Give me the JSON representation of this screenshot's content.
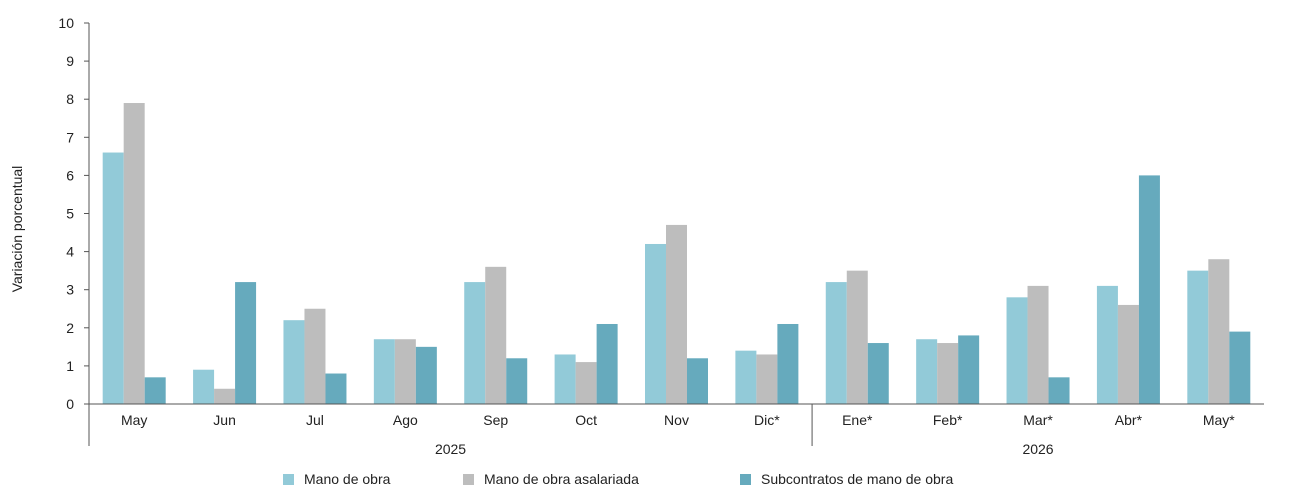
{
  "chart_data": {
    "type": "bar",
    "categories": [
      "May",
      "Jun",
      "Jul",
      "Ago",
      "Sep",
      "Oct",
      "Nov",
      "Dic*",
      "Ene*",
      "Feb*",
      "Mar*",
      "Abr*",
      "May*"
    ],
    "year_groups": [
      {
        "label": "2025",
        "start": 0,
        "end": 7
      },
      {
        "label": "2026",
        "start": 8,
        "end": 12
      }
    ],
    "series": [
      {
        "name": "Mano de obra",
        "color": "#92CAD8",
        "values": [
          6.6,
          0.9,
          2.2,
          1.7,
          3.2,
          1.3,
          4.2,
          1.4,
          3.2,
          1.7,
          2.8,
          3.1,
          3.5
        ]
      },
      {
        "name": "Mano de obra asalariada",
        "color": "#BDBDBD",
        "values": [
          7.9,
          0.4,
          2.5,
          1.7,
          3.6,
          1.1,
          4.7,
          1.3,
          3.5,
          1.6,
          3.1,
          2.6,
          3.8
        ]
      },
      {
        "name": "Subcontratos de mano de obra",
        "color": "#66AABD",
        "values": [
          0.7,
          3.2,
          0.8,
          1.5,
          1.2,
          2.1,
          1.2,
          2.1,
          1.6,
          1.8,
          0.7,
          6.0,
          1.9
        ]
      }
    ],
    "ylabel": "Variación porcentual",
    "ylim": [
      0,
      10
    ],
    "yticks": [
      0,
      1,
      2,
      3,
      4,
      5,
      6,
      7,
      8,
      9,
      10
    ],
    "grid": false,
    "legend_position": "bottom"
  }
}
